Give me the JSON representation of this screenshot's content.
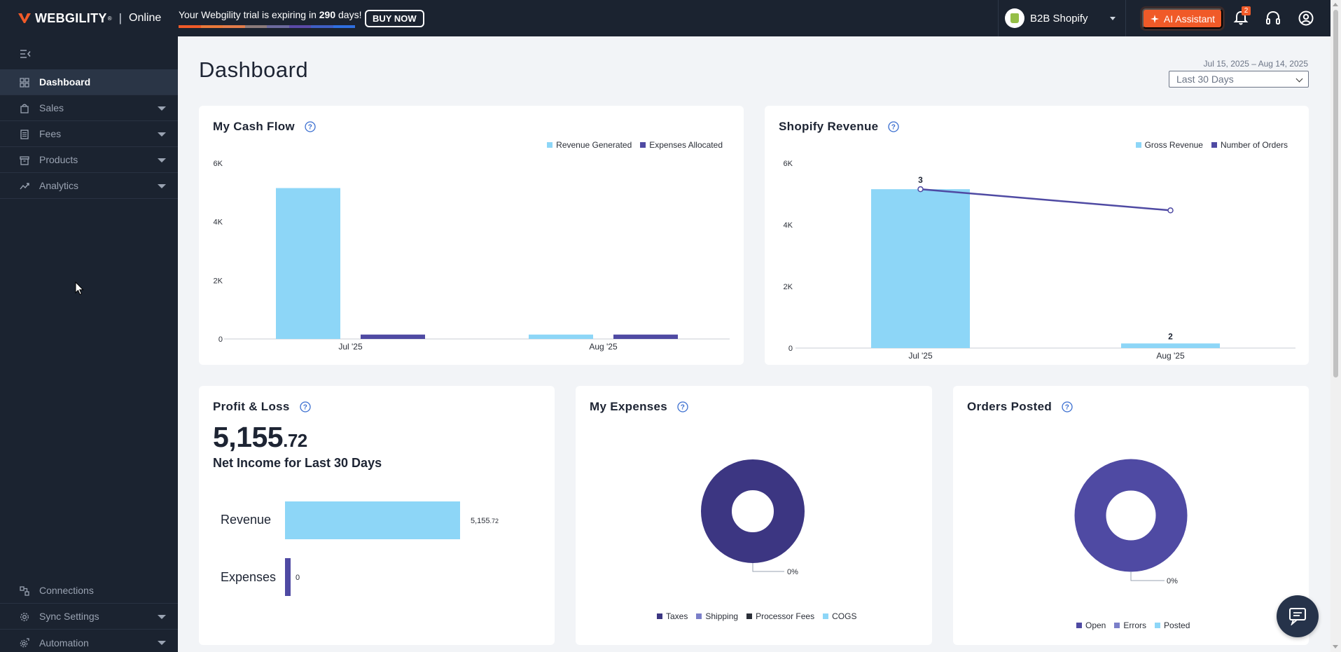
{
  "app": {
    "brand_name": "WEBGILITY",
    "brand_reg": "®",
    "brand_sep": "|",
    "brand_online": "Online"
  },
  "topbar": {
    "trial_prefix": "Your Webgility trial is expiring in ",
    "trial_days": "290",
    "trial_suffix": " days!",
    "trial_progress_colors": [
      "#f05a28",
      "#e9793a",
      "#e27c4a",
      "#8b7b7b",
      "#6c6a9e",
      "#5b4aa8",
      "#3f5fc4",
      "#2f6fe0"
    ],
    "buy_now_label": "BUY NOW",
    "store_name": "B2B Shopify",
    "ai_assistant_label": "AI Assistant",
    "notification_count": "2",
    "icons": [
      "bell-icon",
      "headset-icon",
      "user-profile-icon"
    ]
  },
  "sidebar": {
    "items": [
      {
        "label": "Dashboard",
        "icon": "grid-icon",
        "active": true,
        "has_caret": false
      },
      {
        "label": "Sales",
        "icon": "bag-icon",
        "active": false,
        "has_caret": true
      },
      {
        "label": "Fees",
        "icon": "receipt-icon",
        "active": false,
        "has_caret": true
      },
      {
        "label": "Products",
        "icon": "box-icon",
        "active": false,
        "has_caret": true
      },
      {
        "label": "Analytics",
        "icon": "trend-icon",
        "active": false,
        "has_caret": true
      }
    ],
    "bottom_items": [
      {
        "label": "Connections",
        "icon": "connections-icon",
        "has_caret": false
      },
      {
        "label": "Sync Settings",
        "icon": "gear-icon",
        "has_caret": true
      },
      {
        "label": "Automation",
        "icon": "automation-icon",
        "has_caret": true
      }
    ]
  },
  "main": {
    "title": "Dashboard",
    "date_range": "Jul 15, 2025 – Aug 14, 2025",
    "range_select": "Last 30 Days"
  },
  "cash_flow": {
    "title": "My Cash Flow",
    "legend": [
      "Revenue Generated",
      "Expenses Allocated"
    ]
  },
  "shopify_revenue": {
    "title": "Shopify Revenue",
    "legend": [
      "Gross Revenue",
      "Number of Orders"
    ]
  },
  "profit_loss": {
    "title": "Profit & Loss",
    "amount_main": "5,155",
    "amount_cents": ".72",
    "subtitle": "Net Income for Last 30 Days",
    "revenue_label": "Revenue",
    "revenue_value_main": "5,155",
    "revenue_value_cents": ".72",
    "revenue_value": 5155.72,
    "expenses_label": "Expenses",
    "expenses_value_text": "0",
    "expenses_value": 0
  },
  "my_expenses": {
    "title": "My Expenses",
    "pct_label": "0%",
    "legend": [
      "Taxes",
      "Shipping",
      "Processor Fees",
      "COGS"
    ]
  },
  "orders_posted": {
    "title": "Orders Posted",
    "pct_label": "0%",
    "legend": [
      "Open",
      "Errors",
      "Posted"
    ]
  },
  "colors": {
    "light_blue": "#8dd6f7",
    "purple": "#4f4aa3",
    "navy": "#3c3682",
    "dark": "#1b2330",
    "accent_orange": "#f05a28"
  },
  "chart_data": [
    {
      "type": "bar",
      "title": "My Cash Flow",
      "categories": [
        "Jul '25",
        "Aug '25"
      ],
      "series": [
        {
          "name": "Revenue Generated",
          "values": [
            5150,
            150
          ],
          "color": "#8dd6f7"
        },
        {
          "name": "Expenses Allocated",
          "values": [
            150,
            150
          ],
          "color": "#4f4aa3"
        }
      ],
      "yticks": [
        "0",
        "2K",
        "4K",
        "6K"
      ],
      "ylim": [
        0,
        6000
      ],
      "legend_position": "top-right",
      "grid": false
    },
    {
      "type": "bar",
      "title": "Shopify Revenue",
      "categories": [
        "Jul '25",
        "Aug '25"
      ],
      "series": [
        {
          "name": "Gross Revenue",
          "values": [
            5155.72,
            150
          ],
          "color": "#8dd6f7"
        },
        {
          "name": "Number of Orders",
          "values": [
            3,
            2
          ],
          "color": "#4f4aa3",
          "render": "line"
        }
      ],
      "order_labels": [
        "3",
        "2"
      ],
      "yticks": [
        "0",
        "2K",
        "4K",
        "6K"
      ],
      "ylim": [
        0,
        6000
      ],
      "legend_position": "top-right",
      "grid": false
    },
    {
      "type": "pie",
      "title": "My Expenses",
      "labels": [
        "Taxes",
        "Shipping",
        "Processor Fees",
        "COGS"
      ],
      "values": [
        0,
        0,
        0,
        0
      ],
      "colors": [
        "#3c3682",
        "#7b7fc9",
        "#2b2f38",
        "#8dd6f7"
      ]
    },
    {
      "type": "pie",
      "title": "Orders Posted",
      "labels": [
        "Open",
        "Errors",
        "Posted"
      ],
      "values": [
        0,
        0,
        0
      ],
      "colors": [
        "#4f4aa3",
        "#7b7fc9",
        "#8dd6f7"
      ]
    }
  ]
}
